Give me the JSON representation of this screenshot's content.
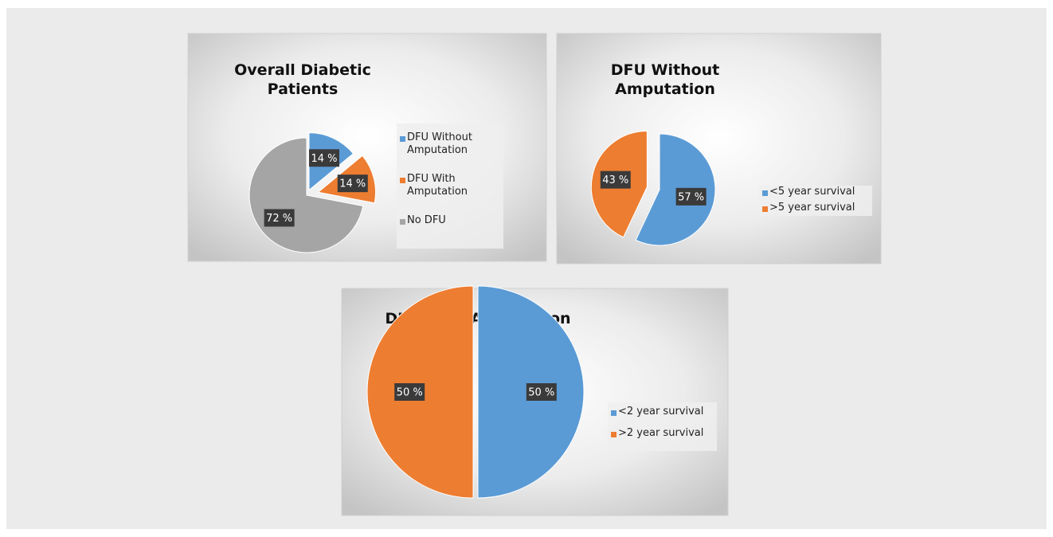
{
  "chart_data": [
    {
      "type": "pie",
      "title": "Overall Diabetic Patients",
      "categories": [
        "DFU Without Amputation",
        "DFU With Amputation",
        "No DFU"
      ],
      "values": [
        14,
        14,
        72
      ],
      "value_labels": [
        "14 %",
        "14 %",
        "72 %"
      ],
      "colors": [
        "#5b9bd5",
        "#ed7d31",
        "#a5a5a5"
      ],
      "legend": "right"
    },
    {
      "type": "pie",
      "title": "DFU Without Amputation",
      "categories": [
        "<5 year survival",
        ">5 year survival"
      ],
      "values": [
        57,
        43
      ],
      "value_labels": [
        "57 %",
        "43 %"
      ],
      "colors": [
        "#5b9bd5",
        "#ed7d31"
      ],
      "legend": "right"
    },
    {
      "type": "pie",
      "title": "DFU With Amputation",
      "categories": [
        "<2 year survival",
        ">2 year survival"
      ],
      "values": [
        50,
        50
      ],
      "value_labels": [
        "50 %",
        "50 %"
      ],
      "colors": [
        "#5b9bd5",
        "#ed7d31"
      ],
      "legend": "right"
    }
  ]
}
